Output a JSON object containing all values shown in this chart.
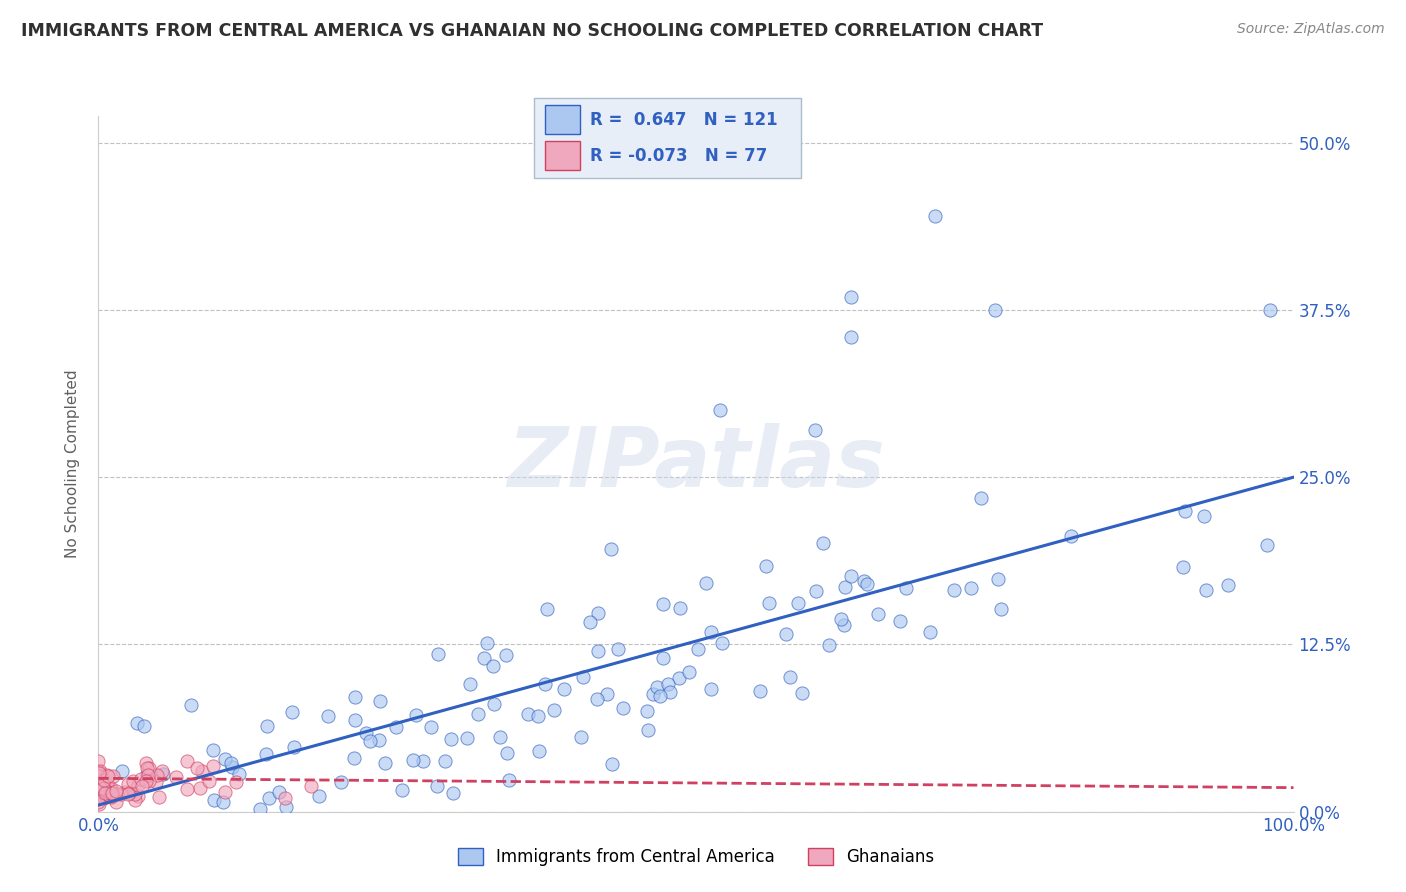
{
  "title": "IMMIGRANTS FROM CENTRAL AMERICA VS GHANAIAN NO SCHOOLING COMPLETED CORRELATION CHART",
  "source": "Source: ZipAtlas.com",
  "ylabel": "No Schooling Completed",
  "xlim": [
    0.0,
    1.0
  ],
  "ylim": [
    0.0,
    0.52
  ],
  "yticks": [
    0.0,
    0.125,
    0.25,
    0.375,
    0.5
  ],
  "ytick_labels": [
    "0.0%",
    "12.5%",
    "25.0%",
    "37.5%",
    "50.0%"
  ],
  "xticks": [
    0.0,
    1.0
  ],
  "xtick_labels": [
    "0.0%",
    "100.0%"
  ],
  "r_blue": 0.647,
  "n_blue": 121,
  "r_pink": -0.073,
  "n_pink": 77,
  "legend_label_blue": "Immigrants from Central America",
  "legend_label_pink": "Ghanaians",
  "scatter_color_blue": "#adc8f0",
  "scatter_color_pink": "#f0a8be",
  "line_color_blue": "#3060c0",
  "line_color_pink": "#d04060",
  "watermark": "ZIPatlas",
  "background_color": "#ffffff",
  "grid_color": "#bbbbbb",
  "title_color": "#303030",
  "source_color": "#888888",
  "legend_box_color": "#e8eef8",
  "legend_border_color": "#aabbcc",
  "blue_line_y0": 0.005,
  "blue_line_y1": 0.25,
  "pink_line_y0": 0.025,
  "pink_line_y1": 0.018
}
